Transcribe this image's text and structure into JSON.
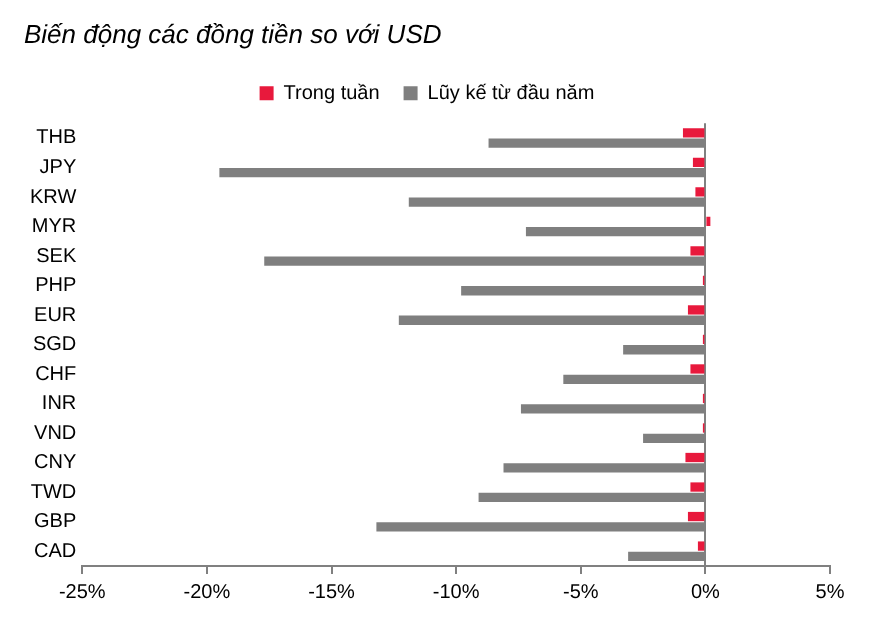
{
  "chart_data": {
    "type": "bar",
    "orientation": "horizontal",
    "title": "Biến động các đồng tiền so với USD",
    "categories": [
      "THB",
      "JPY",
      "KRW",
      "MYR",
      "SEK",
      "PHP",
      "EUR",
      "SGD",
      "CHF",
      "INR",
      "VND",
      "CNY",
      "TWD",
      "GBP",
      "CAD"
    ],
    "series": [
      {
        "name": "Trong tuần",
        "color": "#e8193c",
        "values": [
          -0.9,
          -0.5,
          -0.4,
          0.2,
          -0.6,
          -0.1,
          -0.7,
          -0.1,
          -0.6,
          -0.1,
          -0.1,
          -0.8,
          -0.6,
          -0.7,
          -0.3
        ]
      },
      {
        "name": "Lũy kế từ đầu năm",
        "color": "#7f7f7f",
        "values": [
          -8.7,
          -19.5,
          -11.9,
          -7.2,
          -17.7,
          -9.8,
          -12.3,
          -3.3,
          -5.7,
          -7.4,
          -2.5,
          -8.1,
          -9.1,
          -13.2,
          -3.1
        ]
      }
    ],
    "xlim": [
      -25,
      5
    ],
    "xticks": [
      {
        "value": -25,
        "label": "-25%"
      },
      {
        "value": -20,
        "label": "-20%"
      },
      {
        "value": -15,
        "label": "-15%"
      },
      {
        "value": -10,
        "label": "-10%"
      },
      {
        "value": -5,
        "label": "-5%"
      },
      {
        "value": 0,
        "label": "0%"
      },
      {
        "value": 5,
        "label": "5%"
      }
    ],
    "legend": "top"
  }
}
